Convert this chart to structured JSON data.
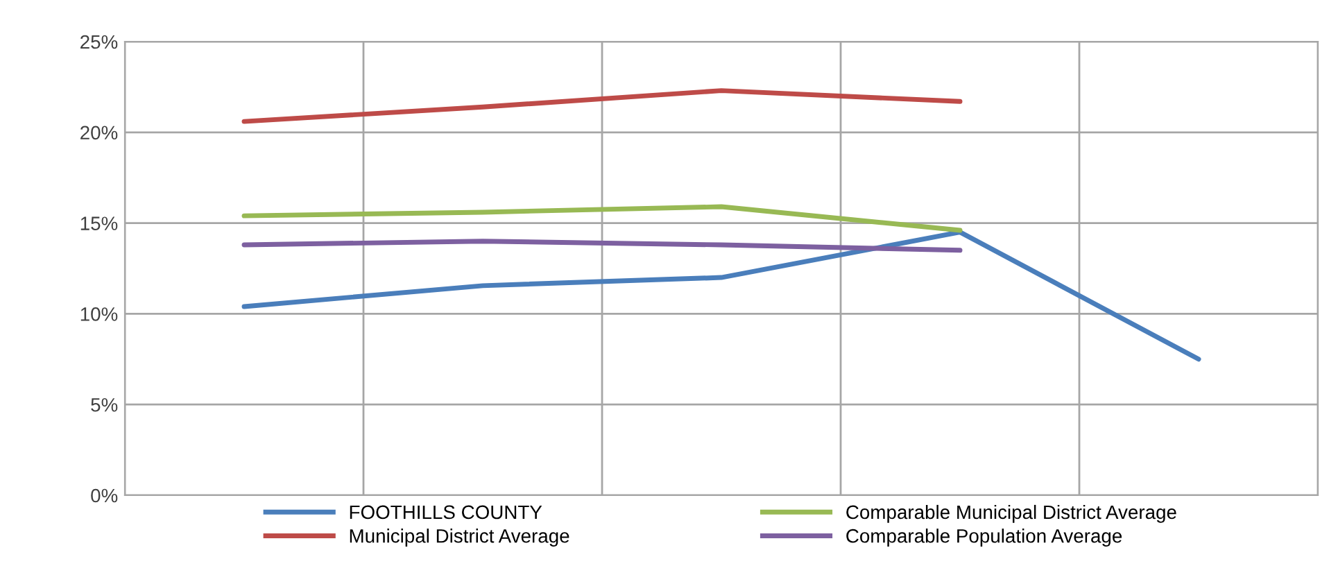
{
  "chart_data": {
    "type": "line",
    "categories": [
      null,
      null,
      null,
      null,
      null
    ],
    "series": [
      {
        "name": "FOOTHILLS COUNTY",
        "color": "#4a7ebb",
        "values": [
          10.4,
          11.55,
          12.0,
          14.5,
          7.5
        ]
      },
      {
        "name": "Municipal District Average",
        "color": "#be4b48",
        "values": [
          20.6,
          21.4,
          22.3,
          21.7,
          null
        ]
      },
      {
        "name": "Comparable Municipal District Average",
        "color": "#98b954",
        "values": [
          15.4,
          15.6,
          15.9,
          14.6,
          null
        ]
      },
      {
        "name": "Comparable Population Average",
        "color": "#7d60a0",
        "values": [
          13.8,
          14.0,
          13.8,
          13.5,
          null
        ]
      }
    ],
    "ylim": [
      0,
      25
    ],
    "yticks": [
      {
        "value": 0,
        "label": "0%"
      },
      {
        "value": 5,
        "label": "5%"
      },
      {
        "value": 10,
        "label": "10%"
      },
      {
        "value": 15,
        "label": "15%"
      },
      {
        "value": 20,
        "label": "20%"
      },
      {
        "value": 25,
        "label": "25%"
      }
    ],
    "grid": true,
    "legend": "bottom",
    "marker": "none",
    "line_style": "solid"
  }
}
